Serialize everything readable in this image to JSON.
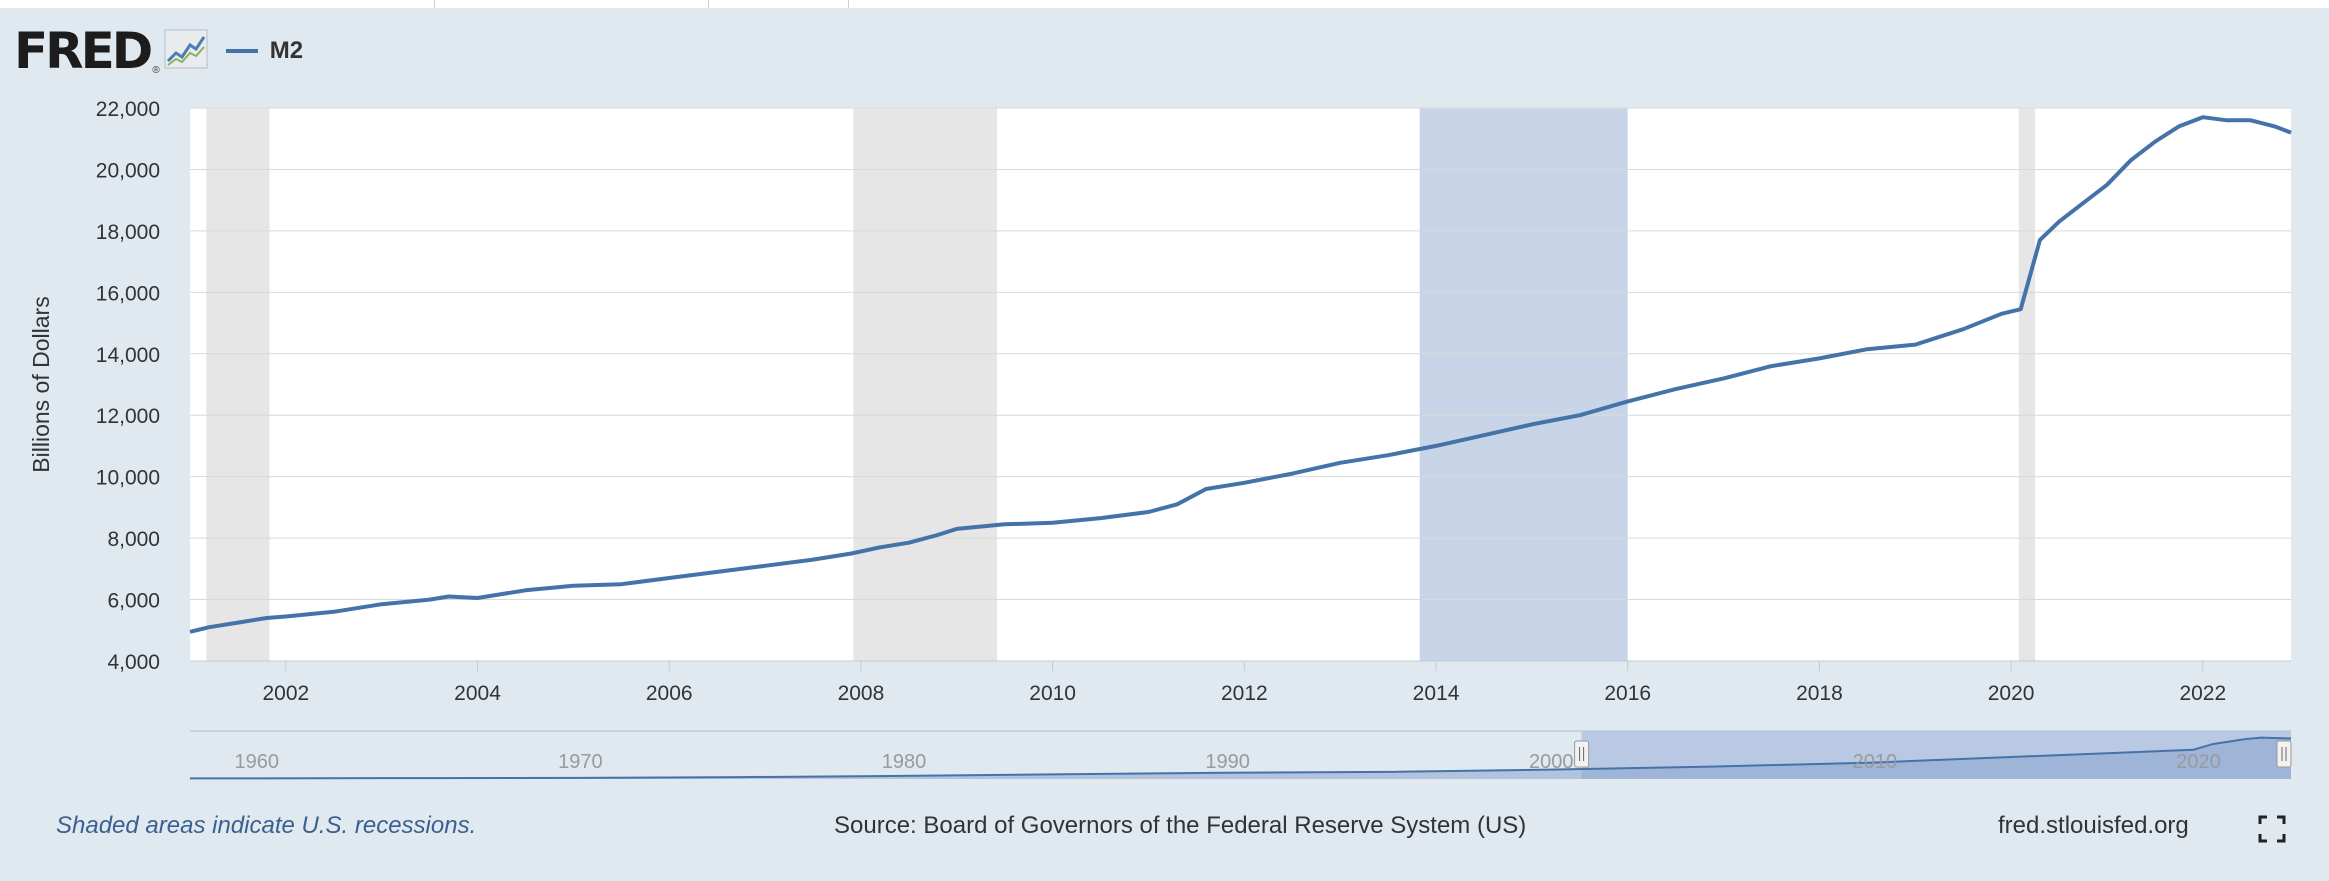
{
  "brand": {
    "logo": "FRED",
    "registered": "®",
    "icon": "line-chart-icon"
  },
  "colors": {
    "background": "#e1e9f0",
    "plot": "#ffffff",
    "series": "#4572a7",
    "recession": "#e6e6e6",
    "highlight": "#c8d5e8",
    "navigator_fill": "#8ba4cf",
    "navigator_mask": "#b9c9e3"
  },
  "footer": {
    "note": "Shaded areas indicate U.S. recessions.",
    "source": "Source: Board of Governors of the Federal Reserve System (US)",
    "site": "fred.stlouisfed.org",
    "fullscreen_icon": "fullscreen-icon"
  },
  "chart_data": {
    "type": "line",
    "title": "",
    "xlabel": "",
    "ylabel": "Billions of Dollars",
    "xlim": [
      2001.0,
      2022.92
    ],
    "ylim": [
      4000,
      22000
    ],
    "yticks": [
      4000,
      6000,
      8000,
      10000,
      12000,
      14000,
      16000,
      18000,
      20000,
      22000
    ],
    "ytick_labels": [
      "4,000",
      "6,000",
      "8,000",
      "10,000",
      "12,000",
      "14,000",
      "16,000",
      "18,000",
      "20,000",
      "22,000"
    ],
    "xticks": [
      2002,
      2004,
      2006,
      2008,
      2010,
      2012,
      2014,
      2016,
      2018,
      2020,
      2022
    ],
    "xtick_labels": [
      "2002",
      "2004",
      "2006",
      "2008",
      "2010",
      "2012",
      "2014",
      "2016",
      "2018",
      "2020",
      "2022"
    ],
    "grid": true,
    "legend": "top-left",
    "recessions": [
      [
        2001.17,
        2001.83
      ],
      [
        2007.92,
        2009.42
      ],
      [
        2020.08,
        2020.25
      ]
    ],
    "highlight_band": [
      2013.83,
      2016.0
    ],
    "series": [
      {
        "name": "M2",
        "x": [
          2001.0,
          2001.2,
          2001.5,
          2001.8,
          2002.0,
          2002.5,
          2003.0,
          2003.5,
          2003.7,
          2004.0,
          2004.5,
          2005.0,
          2005.5,
          2006.0,
          2006.5,
          2007.0,
          2007.5,
          2007.9,
          2008.2,
          2008.5,
          2008.8,
          2009.0,
          2009.5,
          2010.0,
          2010.5,
          2011.0,
          2011.3,
          2011.6,
          2012.0,
          2012.5,
          2013.0,
          2013.5,
          2014.0,
          2014.5,
          2015.0,
          2015.5,
          2016.0,
          2016.5,
          2017.0,
          2017.5,
          2018.0,
          2018.5,
          2019.0,
          2019.5,
          2019.9,
          2020.1,
          2020.3,
          2020.5,
          2020.75,
          2021.0,
          2021.25,
          2021.5,
          2021.75,
          2022.0,
          2022.25,
          2022.5,
          2022.75,
          2022.92
        ],
        "y": [
          4950,
          5100,
          5250,
          5400,
          5450,
          5600,
          5850,
          6000,
          6100,
          6050,
          6300,
          6450,
          6500,
          6700,
          6900,
          7100,
          7300,
          7500,
          7700,
          7850,
          8100,
          8300,
          8450,
          8500,
          8650,
          8850,
          9100,
          9600,
          9800,
          10100,
          10450,
          10700,
          11000,
          11350,
          11700,
          12000,
          12450,
          12850,
          13200,
          13600,
          13850,
          14150,
          14300,
          14800,
          15300,
          15450,
          17700,
          18300,
          18900,
          19500,
          20300,
          20900,
          21400,
          21700,
          21600,
          21600,
          21400,
          21200
        ]
      }
    ]
  },
  "navigator": {
    "labels": [
      "1960",
      "1970",
      "1980",
      "1990",
      "2000",
      "2010",
      "2020"
    ],
    "range": [
      1958.0,
      2022.92
    ],
    "selected": [
      2001.0,
      2022.92
    ]
  }
}
